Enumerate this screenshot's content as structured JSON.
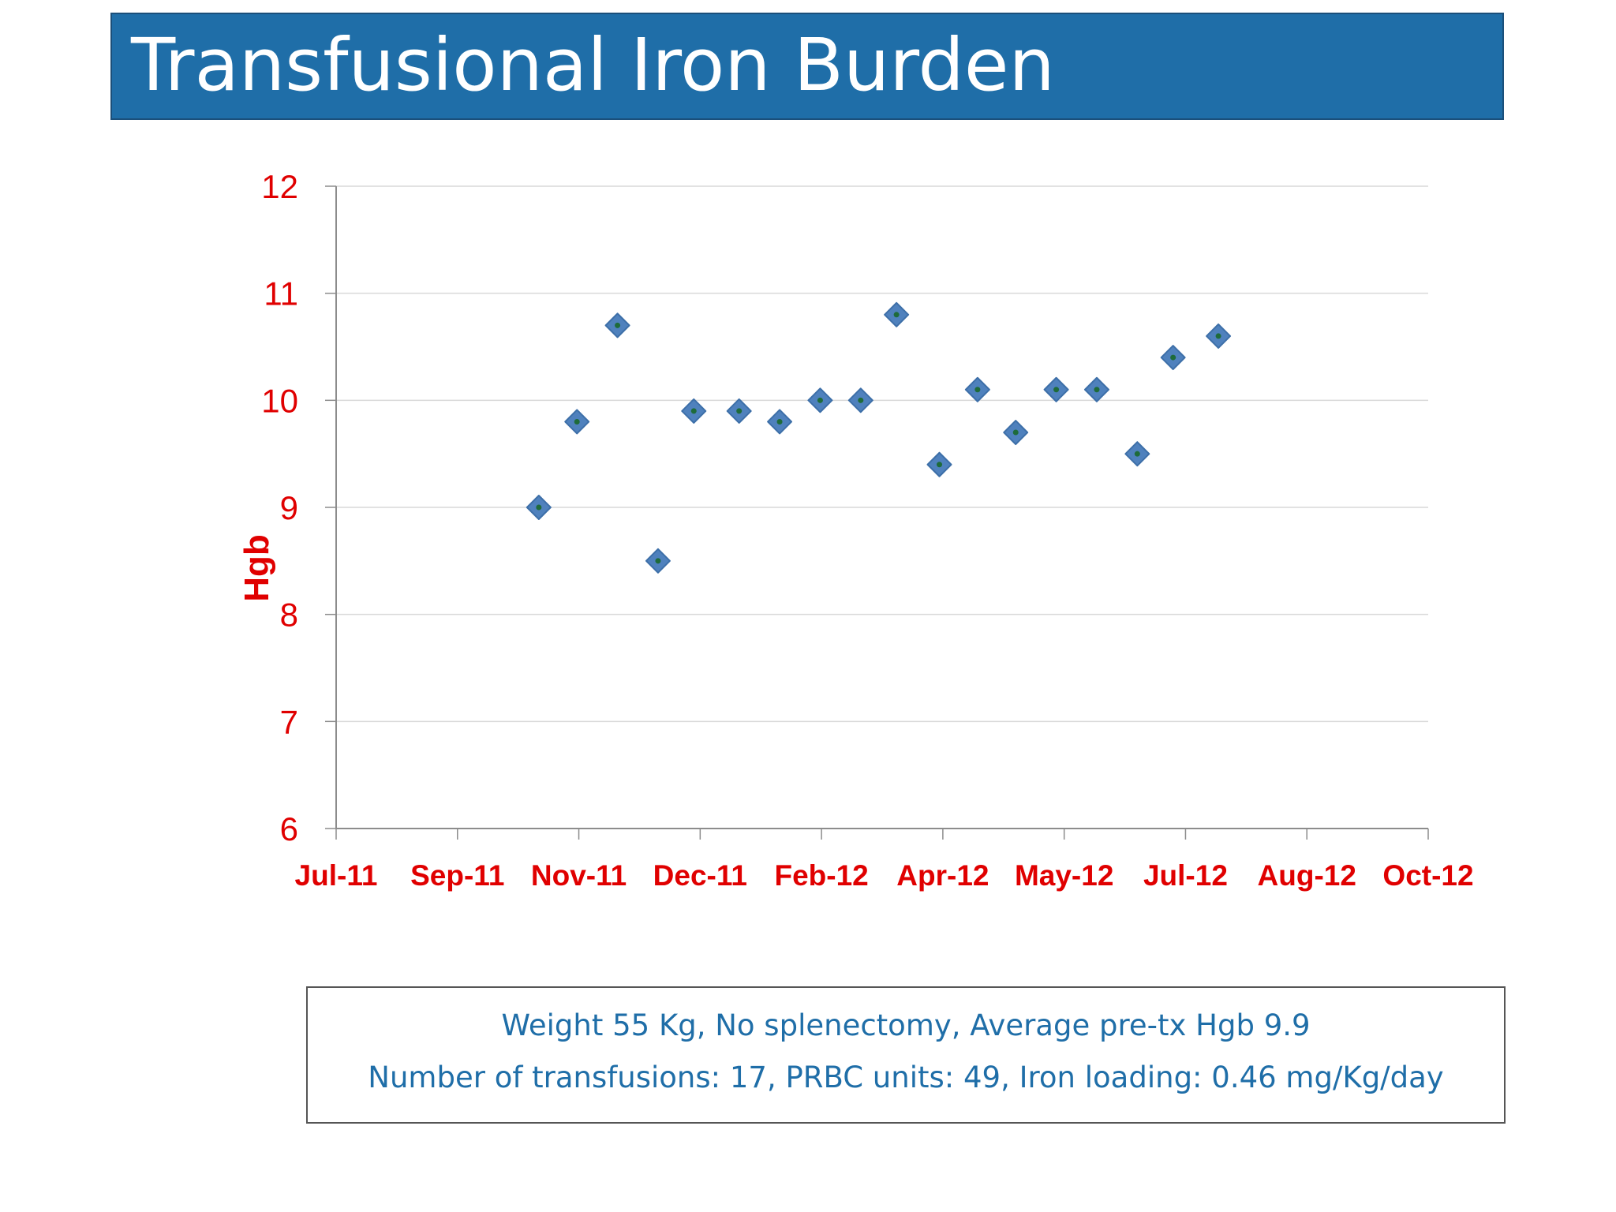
{
  "slide": {
    "title": "Transfusional Iron Burden"
  },
  "info_box": {
    "line1": "Weight 55 Kg, No splenectomy, Average pre-tx Hgb 9.9",
    "line2": "Number of transfusions: 17, PRBC units: 49, Iron loading: 0.46 mg/Kg/day"
  },
  "colors": {
    "title_background": "#1f6ea8",
    "axis_text": "#e00000",
    "marker_fill": "#4f81bd",
    "marker_center": "#1e6b3a",
    "info_text": "#1f6ea8"
  },
  "chart_data": {
    "type": "scatter",
    "title": "",
    "xlabel": "",
    "ylabel": "Hgb",
    "x_tick_labels": [
      "Jul-11",
      "Sep-11",
      "Nov-11",
      "Dec-11",
      "Feb-12",
      "Apr-12",
      "May-12",
      "Jul-12",
      "Aug-12",
      "Oct-12"
    ],
    "y_ticks": [
      6,
      7,
      8,
      9,
      10,
      11,
      12
    ],
    "ylim": [
      6,
      12
    ],
    "grid": "horizontal",
    "legend": "none",
    "series": [
      {
        "points": [
          {
            "x": "2011-09-24",
            "y": 9.0
          },
          {
            "x": "2011-10-10",
            "y": 9.8
          },
          {
            "x": "2011-10-27",
            "y": 10.7
          },
          {
            "x": "2011-11-13",
            "y": 8.5
          },
          {
            "x": "2011-11-28",
            "y": 9.9
          },
          {
            "x": "2011-12-17",
            "y": 9.9
          },
          {
            "x": "2012-01-03",
            "y": 9.8
          },
          {
            "x": "2012-01-20",
            "y": 10.0
          },
          {
            "x": "2012-02-06",
            "y": 10.0
          },
          {
            "x": "2012-02-21",
            "y": 10.8
          },
          {
            "x": "2012-03-10",
            "y": 9.4
          },
          {
            "x": "2012-03-26",
            "y": 10.1
          },
          {
            "x": "2012-04-11",
            "y": 9.7
          },
          {
            "x": "2012-04-28",
            "y": 10.1
          },
          {
            "x": "2012-05-15",
            "y": 10.1
          },
          {
            "x": "2012-06-01",
            "y": 9.5
          },
          {
            "x": "2012-06-16",
            "y": 10.4
          },
          {
            "x": "2012-07-05",
            "y": 10.6
          }
        ]
      }
    ]
  }
}
